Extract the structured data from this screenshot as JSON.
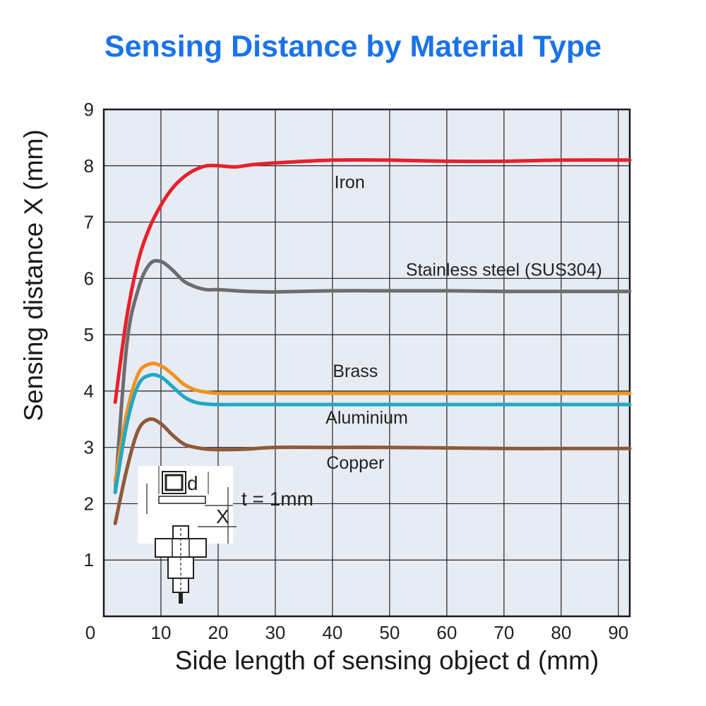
{
  "chart_data": {
    "type": "line",
    "title": "Sensing Distance by Material Type",
    "xlabel": "Side length of sensing object d (mm)",
    "ylabel": "Sensing distance X (mm)",
    "xlim": [
      0,
      92
    ],
    "ylim": [
      0,
      9
    ],
    "x_ticks": [
      10,
      20,
      30,
      40,
      50,
      60,
      70,
      80,
      90
    ],
    "y_ticks": [
      1,
      2,
      3,
      4,
      5,
      6,
      7,
      8,
      9
    ],
    "origin_label": "0",
    "grid": true,
    "plot_background": "#e7ebf4",
    "legend": "inline labels",
    "series": [
      {
        "name": "Iron",
        "color": "#e8202a",
        "x": [
          2,
          4,
          6,
          8,
          10,
          12,
          14,
          16,
          18,
          20,
          23,
          26,
          30,
          40,
          50,
          60,
          70,
          80,
          92
        ],
        "y": [
          3.8,
          5.3,
          6.3,
          6.9,
          7.3,
          7.6,
          7.8,
          7.93,
          8.0,
          8.0,
          7.98,
          8.02,
          8.05,
          8.1,
          8.1,
          8.08,
          8.08,
          8.1,
          8.1
        ]
      },
      {
        "name": "Stainless steel (SUS304)",
        "color": "#6d6d6f",
        "x": [
          2,
          4,
          6,
          8,
          10,
          12,
          14,
          16,
          18,
          20,
          25,
          30,
          40,
          50,
          60,
          70,
          80,
          92
        ],
        "y": [
          2.2,
          4.8,
          5.8,
          6.25,
          6.3,
          6.15,
          5.95,
          5.85,
          5.8,
          5.8,
          5.77,
          5.76,
          5.78,
          5.78,
          5.78,
          5.77,
          5.77,
          5.77
        ]
      },
      {
        "name": "Brass",
        "color": "#f0921e",
        "x": [
          2,
          4,
          6,
          8,
          10,
          12,
          14,
          16,
          18,
          20,
          25,
          30,
          40,
          50,
          60,
          70,
          80,
          92
        ],
        "y": [
          2.4,
          3.6,
          4.3,
          4.48,
          4.45,
          4.3,
          4.12,
          4.02,
          3.98,
          3.96,
          3.96,
          3.96,
          3.96,
          3.96,
          3.96,
          3.96,
          3.96,
          3.96
        ]
      },
      {
        "name": "Aluminium",
        "color": "#1fa9c4",
        "x": [
          2,
          4,
          6,
          8,
          10,
          12,
          14,
          16,
          18,
          20,
          25,
          30,
          40,
          50,
          60,
          70,
          80,
          92
        ],
        "y": [
          2.2,
          3.4,
          4.1,
          4.28,
          4.25,
          4.08,
          3.9,
          3.8,
          3.77,
          3.76,
          3.76,
          3.76,
          3.76,
          3.76,
          3.76,
          3.76,
          3.76,
          3.76
        ]
      },
      {
        "name": "Copper",
        "color": "#8e5a3a",
        "x": [
          2,
          4,
          6,
          8,
          10,
          12,
          14,
          16,
          18,
          20,
          25,
          30,
          40,
          50,
          60,
          70,
          80,
          92
        ],
        "y": [
          1.65,
          2.6,
          3.3,
          3.5,
          3.42,
          3.22,
          3.06,
          3.0,
          2.97,
          2.96,
          2.97,
          3.0,
          3.0,
          3.0,
          2.99,
          2.98,
          2.98,
          2.98
        ]
      }
    ],
    "inset": {
      "d_label": "d",
      "t_label": "t = 1mm",
      "x_label": "X"
    }
  }
}
